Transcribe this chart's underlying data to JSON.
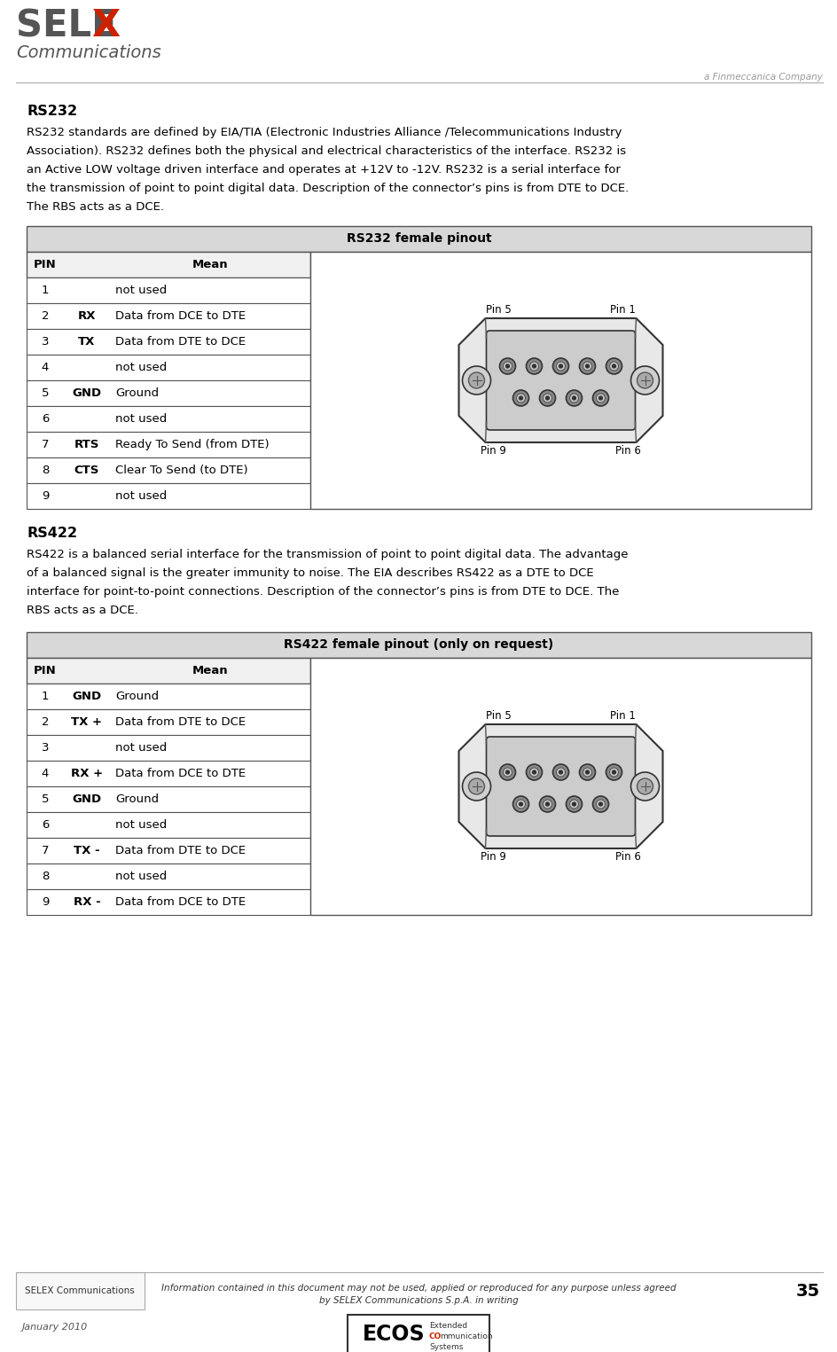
{
  "page_width": 9.45,
  "page_height": 15.25,
  "bg_color": "#ffffff",
  "rs232_heading": "RS232",
  "rs232_body_lines": [
    "RS232 standards are defined by EIA/TIA (Electronic Industries Alliance /Telecommunications Industry",
    "Association). RS232 defines both the physical and electrical characteristics of the interface. RS232 is",
    "an Active LOW voltage driven interface and operates at +12V to -12V. RS232 is a serial interface for",
    "the transmission of point to point digital data. Description of the connector’s pins is from DTE to DCE.",
    "The RBS acts as a DCE."
  ],
  "rs232_table_title": "RS232 female pinout",
  "rs232_table_rows": [
    [
      "1",
      "",
      "not used"
    ],
    [
      "2",
      "RX",
      "Data from DCE to DTE"
    ],
    [
      "3",
      "TX",
      "Data from DTE to DCE"
    ],
    [
      "4",
      "",
      "not used"
    ],
    [
      "5",
      "GND",
      "Ground"
    ],
    [
      "6",
      "",
      "not used"
    ],
    [
      "7",
      "RTS",
      "Ready To Send (from DTE)"
    ],
    [
      "8",
      "CTS",
      "Clear To Send (to DTE)"
    ],
    [
      "9",
      "",
      "not used"
    ]
  ],
  "rs422_heading": "RS422",
  "rs422_body_lines": [
    "RS422 is a balanced serial interface for the transmission of point to point digital data. The advantage",
    "of a balanced signal is the greater immunity to noise. The EIA describes RS422 as a DTE to DCE",
    "interface for point-to-point connections. Description of the connector’s pins is from DTE to DCE. The",
    "RBS acts as a DCE."
  ],
  "rs422_table_title_bold": "RS422 female pinout",
  "rs422_table_title_normal": " (only on request)",
  "rs422_table_rows": [
    [
      "1",
      "GND",
      "Ground"
    ],
    [
      "2",
      "TX +",
      "Data from DTE to DCE"
    ],
    [
      "3",
      "",
      "not used"
    ],
    [
      "4",
      "RX +",
      "Data from DCE to DTE"
    ],
    [
      "5",
      "GND",
      "Ground"
    ],
    [
      "6",
      "",
      "not used"
    ],
    [
      "7",
      "TX -",
      "Data from DTE to DCE"
    ],
    [
      "8",
      "",
      "not used"
    ],
    [
      "9",
      "RX -",
      "Data from DCE to DTE"
    ]
  ],
  "footer_left": "SELEX Communications",
  "footer_center_line1": "Information contained in this document may not be used, applied or reproduced for any purpose unless agreed",
  "footer_center_line2": "by SELEX Communications S.p.A. in writing",
  "footer_page": "35",
  "footer_date": "January 2010"
}
